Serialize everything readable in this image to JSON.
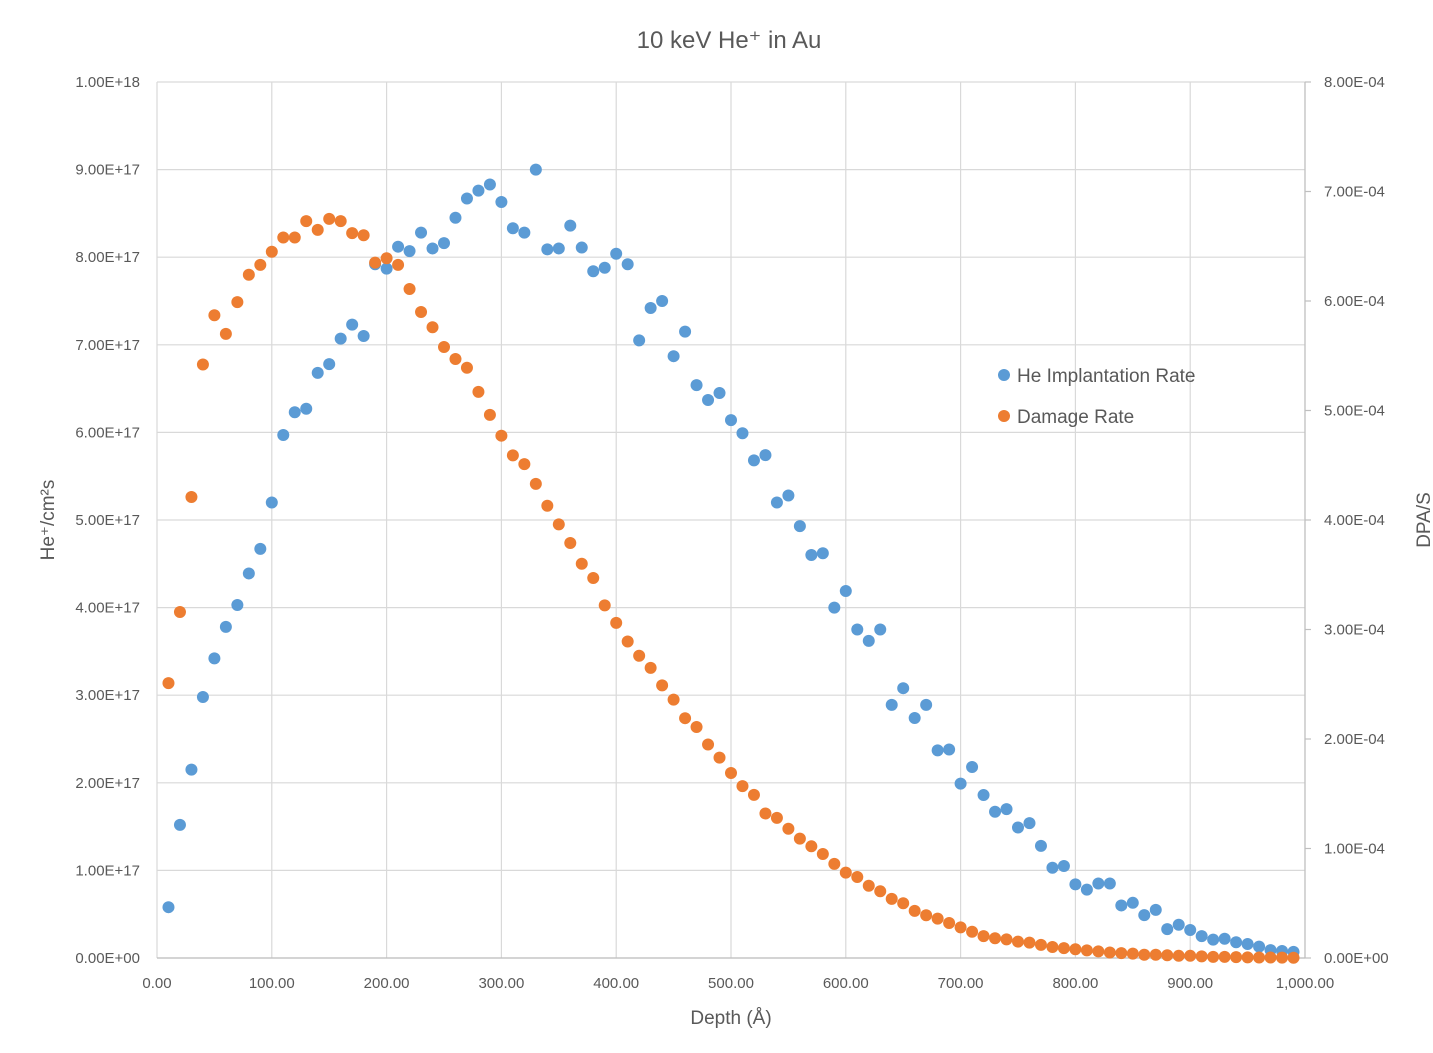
{
  "chart_data": {
    "type": "scatter",
    "title": "10 keV He⁺ in Au",
    "xlabel": "Depth (Å)",
    "ylabel": "He⁺/cm²s",
    "y2label": "DPA/S",
    "xlim": [
      0,
      1000
    ],
    "ylim": [
      0,
      1e+18
    ],
    "y2lim": [
      0,
      0.0008
    ],
    "grid": true,
    "legend_position": "right",
    "x_ticks": [
      "0.00",
      "100.00",
      "200.00",
      "300.00",
      "400.00",
      "500.00",
      "600.00",
      "700.00",
      "800.00",
      "900.00",
      "1,000.00"
    ],
    "y_ticks": [
      "0.00E+00",
      "1.00E+17",
      "2.00E+17",
      "3.00E+17",
      "4.00E+17",
      "5.00E+17",
      "6.00E+17",
      "7.00E+17",
      "8.00E+17",
      "9.00E+17",
      "1.00E+18"
    ],
    "y2_ticks": [
      "0.00E+00",
      "1.00E-04",
      "2.00E-04",
      "3.00E-04",
      "4.00E-04",
      "5.00E-04",
      "6.00E-04",
      "7.00E-04",
      "8.00E-04"
    ],
    "series": [
      {
        "name": "He Implantation Rate",
        "color": "#5b9bd5",
        "axis": "left",
        "x": [
          10,
          20,
          30,
          40,
          50,
          60,
          70,
          80,
          90,
          100,
          110,
          120,
          130,
          140,
          150,
          160,
          170,
          180,
          190,
          200,
          210,
          220,
          230,
          240,
          250,
          260,
          270,
          280,
          290,
          300,
          310,
          320,
          330,
          340,
          350,
          360,
          370,
          380,
          390,
          400,
          410,
          420,
          430,
          440,
          450,
          460,
          470,
          480,
          490,
          500,
          510,
          520,
          530,
          540,
          550,
          560,
          570,
          580,
          590,
          600,
          610,
          620,
          630,
          640,
          650,
          660,
          670,
          680,
          690,
          700,
          710,
          720,
          730,
          740,
          750,
          760,
          770,
          780,
          790,
          800,
          810,
          820,
          830,
          840,
          850,
          860,
          870,
          880,
          890,
          900,
          910,
          920,
          930,
          940,
          950,
          960,
          970,
          980,
          990
        ],
        "y": [
          5.8e+16,
          1.52e+17,
          2.15e+17,
          2.98e+17,
          3.42e+17,
          3.78e+17,
          4.03e+17,
          4.39e+17,
          4.67e+17,
          5.2e+17,
          5.97e+17,
          6.23e+17,
          6.27e+17,
          6.68e+17,
          6.78e+17,
          7.07e+17,
          7.23e+17,
          7.1e+17,
          7.92e+17,
          7.87e+17,
          8.12e+17,
          8.07e+17,
          8.28e+17,
          8.1e+17,
          8.16e+17,
          8.45e+17,
          8.67e+17,
          8.76e+17,
          8.83e+17,
          8.63e+17,
          8.33e+17,
          8.28e+17,
          9e+17,
          8.09e+17,
          8.1e+17,
          8.36e+17,
          8.11e+17,
          7.84e+17,
          7.88e+17,
          8.04e+17,
          7.92e+17,
          7.05e+17,
          7.42e+17,
          7.5e+17,
          6.87e+17,
          7.15e+17,
          6.54e+17,
          6.37e+17,
          6.45e+17,
          6.14e+17,
          5.99e+17,
          5.68e+17,
          5.74e+17,
          5.2e+17,
          5.28e+17,
          4.93e+17,
          4.6e+17,
          4.62e+17,
          4e+17,
          4.19e+17,
          3.75e+17,
          3.62e+17,
          3.75e+17,
          2.89e+17,
          3.08e+17,
          2.74e+17,
          2.89e+17,
          2.37e+17,
          2.38e+17,
          1.99e+17,
          2.18e+17,
          1.86e+17,
          1.67e+17,
          1.7e+17,
          1.49e+17,
          1.54e+17,
          1.28e+17,
          1.03e+17,
          1.05e+17,
          8.4e+16,
          7.8e+16,
          8.5e+16,
          8.5e+16,
          6e+16,
          6.3e+16,
          4.9e+16,
          5.5e+16,
          3.3e+16,
          3.8e+16,
          3.2e+16,
          2.5e+16,
          2.1e+16,
          2.2e+16,
          1.8e+16,
          1.6e+16,
          1.3e+16,
          9000000000000000.0,
          8000000000000000.0,
          7000000000000000.0
        ]
      },
      {
        "name": "Damage Rate",
        "color": "#ed7d31",
        "axis": "right",
        "x": [
          10,
          20,
          30,
          40,
          50,
          60,
          70,
          80,
          90,
          100,
          110,
          120,
          130,
          140,
          150,
          160,
          170,
          180,
          190,
          200,
          210,
          220,
          230,
          240,
          250,
          260,
          270,
          280,
          290,
          300,
          310,
          320,
          330,
          340,
          350,
          360,
          370,
          380,
          390,
          400,
          410,
          420,
          430,
          440,
          450,
          460,
          470,
          480,
          490,
          500,
          510,
          520,
          530,
          540,
          550,
          560,
          570,
          580,
          590,
          600,
          610,
          620,
          630,
          640,
          650,
          660,
          670,
          680,
          690,
          700,
          710,
          720,
          730,
          740,
          750,
          760,
          770,
          780,
          790,
          800,
          810,
          820,
          830,
          840,
          850,
          860,
          870,
          880,
          890,
          900,
          910,
          920,
          930,
          940,
          950,
          960,
          970,
          980,
          990
        ],
        "y": [
          0.000251,
          0.000316,
          0.000421,
          0.000542,
          0.000587,
          0.00057,
          0.000599,
          0.000624,
          0.000633,
          0.000645,
          0.000658,
          0.000658,
          0.000673,
          0.000665,
          0.000675,
          0.000673,
          0.000662,
          0.00066,
          0.000635,
          0.000639,
          0.000633,
          0.000611,
          0.00059,
          0.000576,
          0.000558,
          0.000547,
          0.000539,
          0.000517,
          0.000496,
          0.000477,
          0.000459,
          0.000451,
          0.000433,
          0.000413,
          0.000396,
          0.000379,
          0.00036,
          0.000347,
          0.000322,
          0.000306,
          0.000289,
          0.000276,
          0.000265,
          0.000249,
          0.000236,
          0.000219,
          0.000211,
          0.000195,
          0.000183,
          0.000169,
          0.000157,
          0.000149,
          0.000132,
          0.000128,
          0.000118,
          0.000109,
          0.000102,
          9.5e-05,
          8.6e-05,
          7.8e-05,
          7.4e-05,
          6.6e-05,
          6.1e-05,
          5.4e-05,
          5e-05,
          4.3e-05,
          3.9e-05,
          3.6e-05,
          3.2e-05,
          2.8e-05,
          2.4e-05,
          2e-05,
          1.8e-05,
          1.7e-05,
          1.5e-05,
          1.4e-05,
          1.2e-05,
          1e-05,
          9e-06,
          8e-06,
          7e-06,
          6e-06,
          5e-06,
          4.5e-06,
          4e-06,
          3e-06,
          3e-06,
          2.5e-06,
          2e-06,
          2e-06,
          1.5e-06,
          1e-06,
          1e-06,
          8e-07,
          6e-07,
          5e-07,
          4e-07,
          3e-07,
          2e-07
        ]
      }
    ]
  }
}
